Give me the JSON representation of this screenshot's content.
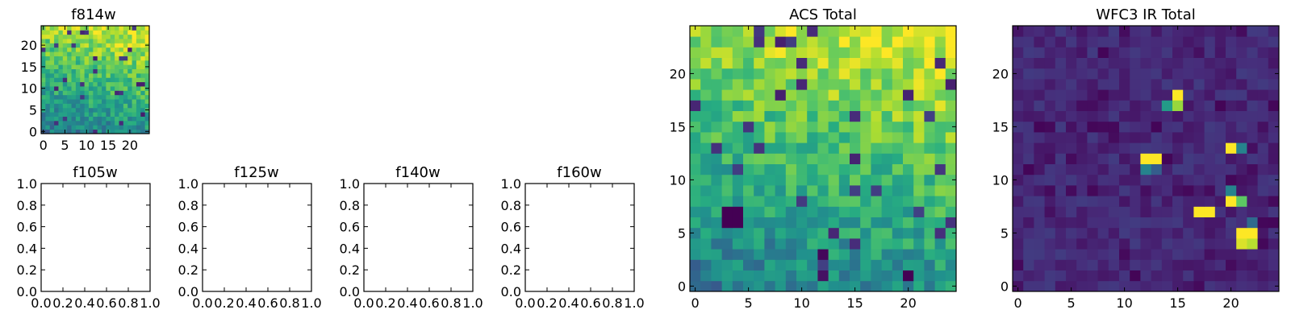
{
  "chart_data": [
    {
      "type": "heatmap",
      "title": "f814w",
      "colormap": "viridis",
      "grid_size": 25,
      "xticks": [
        "0",
        "5",
        "10",
        "15",
        "20"
      ],
      "yticks": [
        "0",
        "5",
        "10",
        "15",
        "20"
      ],
      "xlim": [
        -0.5,
        24.5
      ],
      "ylim": [
        -0.5,
        24.5
      ],
      "value_range": [
        0,
        1
      ],
      "trend": "values rise toward the top-right (yellow), lower toward bottom-left"
    },
    {
      "type": "empty",
      "title": "f105w",
      "xticks": [
        "0.0",
        "0.2",
        "0.4",
        "0.6",
        "0.8",
        "1.0"
      ],
      "yticks": [
        "0.0",
        "0.2",
        "0.4",
        "0.6",
        "0.8",
        "1.0"
      ],
      "xlim": [
        0,
        1
      ],
      "ylim": [
        0,
        1
      ]
    },
    {
      "type": "empty",
      "title": "f125w",
      "xticks": [
        "0.0",
        "0.2",
        "0.4",
        "0.6",
        "0.8",
        "1.0"
      ],
      "yticks": [
        "0.0",
        "0.2",
        "0.4",
        "0.6",
        "0.8",
        "1.0"
      ],
      "xlim": [
        0,
        1
      ],
      "ylim": [
        0,
        1
      ]
    },
    {
      "type": "empty",
      "title": "f140w",
      "xticks": [
        "0.0",
        "0.2",
        "0.4",
        "0.6",
        "0.8",
        "1.0"
      ],
      "yticks": [
        "0.0",
        "0.2",
        "0.4",
        "0.6",
        "0.8",
        "1.0"
      ],
      "xlim": [
        0,
        1
      ],
      "ylim": [
        0,
        1
      ]
    },
    {
      "type": "empty",
      "title": "f160w",
      "xticks": [
        "0.0",
        "0.2",
        "0.4",
        "0.6",
        "0.8",
        "1.0"
      ],
      "yticks": [
        "0.0",
        "0.2",
        "0.4",
        "0.6",
        "0.8",
        "1.0"
      ],
      "xlim": [
        0,
        1
      ],
      "ylim": [
        0,
        1
      ]
    },
    {
      "type": "heatmap",
      "title": "ACS Total",
      "colormap": "viridis",
      "grid_size": 25,
      "xticks": [
        "0",
        "5",
        "10",
        "15",
        "20"
      ],
      "yticks": [
        "0",
        "5",
        "10",
        "15",
        "20"
      ],
      "xlim": [
        -0.5,
        24.5
      ],
      "ylim": [
        -0.5,
        24.5
      ],
      "value_range": [
        0,
        1
      ],
      "trend": "values rise toward the top-right (yellow), lower toward bottom-left",
      "notable_cells": [
        {
          "x": 3,
          "y": 6,
          "value": 0.0
        },
        {
          "x": 4,
          "y": 6,
          "value": 0.0
        },
        {
          "x": 3,
          "y": 7,
          "value": 0.0
        },
        {
          "x": 4,
          "y": 7,
          "value": 0.0
        },
        {
          "x": 12,
          "y": 3,
          "value": 0.02
        },
        {
          "x": 12,
          "y": 1,
          "value": 0.05
        },
        {
          "x": 20,
          "y": 1,
          "value": 0.0
        },
        {
          "x": 21,
          "y": 19,
          "value": 0.98
        },
        {
          "x": 21,
          "y": 18,
          "value": 0.95
        },
        {
          "x": 22,
          "y": 22,
          "value": 0.97
        }
      ]
    },
    {
      "type": "heatmap",
      "title": "WFC3 IR Total",
      "colormap": "viridis",
      "grid_size": 25,
      "xticks": [
        "0",
        "5",
        "10",
        "15",
        "20"
      ],
      "yticks": [
        "0",
        "5",
        "10",
        "15",
        "20"
      ],
      "xlim": [
        -0.5,
        24.5
      ],
      "ylim": [
        -0.5,
        24.5
      ],
      "value_range": [
        0,
        1
      ],
      "background_level": "low (dark purple)",
      "notable_cells": [
        {
          "x": 15,
          "y": 18,
          "value": 1.0
        },
        {
          "x": 15,
          "y": 17,
          "value": 0.85
        },
        {
          "x": 14,
          "y": 17,
          "value": 0.55
        },
        {
          "x": 12,
          "y": 12,
          "value": 1.0
        },
        {
          "x": 13,
          "y": 12,
          "value": 1.0
        },
        {
          "x": 12,
          "y": 11,
          "value": 0.45
        },
        {
          "x": 13,
          "y": 11,
          "value": 0.3
        },
        {
          "x": 20,
          "y": 13,
          "value": 1.0
        },
        {
          "x": 21,
          "y": 13,
          "value": 0.45
        },
        {
          "x": 20,
          "y": 8,
          "value": 1.0
        },
        {
          "x": 21,
          "y": 8,
          "value": 0.75
        },
        {
          "x": 20,
          "y": 9,
          "value": 0.45
        },
        {
          "x": 17,
          "y": 7,
          "value": 1.0
        },
        {
          "x": 18,
          "y": 7,
          "value": 1.0
        },
        {
          "x": 21,
          "y": 5,
          "value": 1.0
        },
        {
          "x": 22,
          "y": 5,
          "value": 1.0
        },
        {
          "x": 21,
          "y": 4,
          "value": 0.95
        },
        {
          "x": 22,
          "y": 4,
          "value": 0.9
        },
        {
          "x": 22,
          "y": 6,
          "value": 0.35
        }
      ]
    }
  ]
}
